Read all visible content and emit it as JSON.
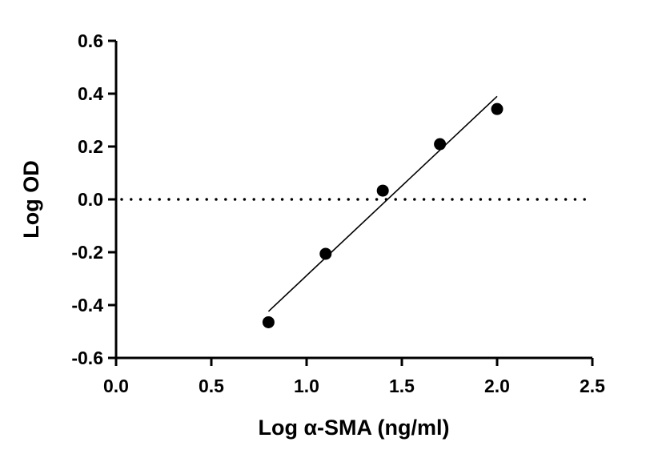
{
  "chart_data": {
    "type": "scatter",
    "title": "",
    "xlabel": "Log α-SMA (ng/ml)",
    "ylabel": "Log OD",
    "xlim": [
      0,
      2.5
    ],
    "ylim": [
      -0.6,
      0.6
    ],
    "x_ticks": [
      "0.0",
      "0.5",
      "1.0",
      "1.5",
      "2.0",
      "2.5"
    ],
    "y_ticks": [
      "0.6",
      "0.4",
      "0.2",
      "0.0",
      "-0.2",
      "-0.4",
      "-0.6"
    ],
    "grid": false,
    "legend": "none",
    "series": [
      {
        "x": [
          0.8,
          1.1,
          1.4,
          1.7,
          2.0
        ],
        "y": [
          -0.465,
          -0.206,
          0.033,
          0.209,
          0.342
        ],
        "marker": "circle",
        "color": "#000000"
      }
    ],
    "fit_line": {
      "x": [
        0.8,
        2.0
      ],
      "y": [
        -0.424,
        0.39
      ],
      "color": "#000000"
    },
    "reference_line": {
      "y": 0,
      "style": "dotted"
    }
  }
}
